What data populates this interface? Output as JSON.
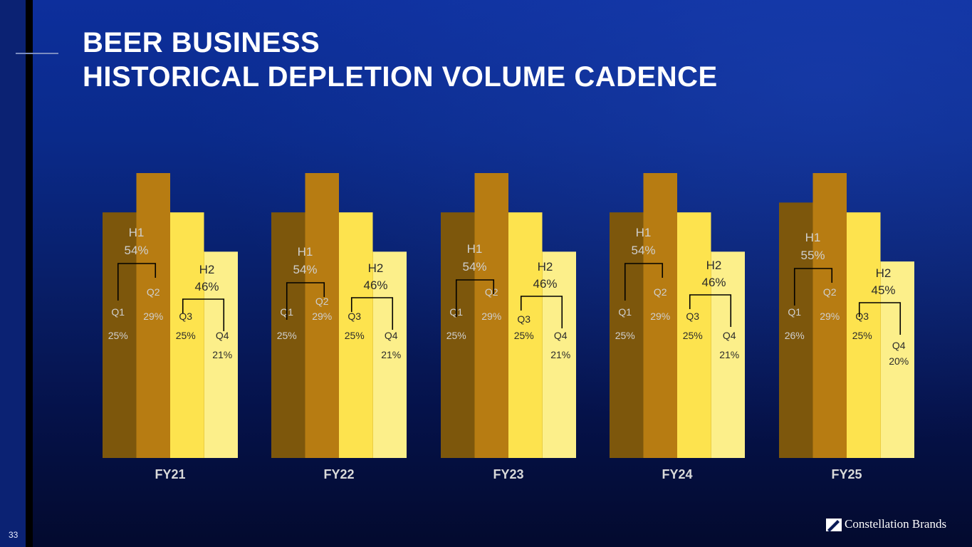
{
  "title": {
    "line1": "BEER BUSINESS",
    "line2": "HISTORICAL DEPLETION VOLUME CADENCE"
  },
  "page_number": "33",
  "logo": {
    "text": "Constellation Brands"
  },
  "colors": {
    "q1": "#7d570c",
    "q2": "#b77c12",
    "q3": "#fde34e",
    "q4": "#fcef8a",
    "label_light": "#cfcfcf",
    "label_dark": "#2b2b2b",
    "category_label": "#d9d9d9"
  },
  "chart_data": {
    "type": "bar",
    "title": "HISTORICAL DEPLETION VOLUME CADENCE",
    "quarters": [
      "Q1",
      "Q2",
      "Q3",
      "Q4"
    ],
    "categories": [
      "FY21",
      "FY22",
      "FY23",
      "FY24",
      "FY25"
    ],
    "series": [
      {
        "name": "Q1",
        "values": [
          25,
          25,
          25,
          25,
          26
        ]
      },
      {
        "name": "Q2",
        "values": [
          29,
          29,
          29,
          29,
          29
        ]
      },
      {
        "name": "Q3",
        "values": [
          25,
          25,
          25,
          25,
          25
        ]
      },
      {
        "name": "Q4",
        "values": [
          21,
          21,
          21,
          21,
          20
        ]
      }
    ],
    "halves": [
      {
        "name": "H1",
        "values": [
          54,
          54,
          54,
          54,
          55
        ]
      },
      {
        "name": "H2",
        "values": [
          46,
          46,
          46,
          46,
          45
        ]
      }
    ],
    "value_suffix": "%",
    "ylim": [
      0,
      30
    ]
  }
}
